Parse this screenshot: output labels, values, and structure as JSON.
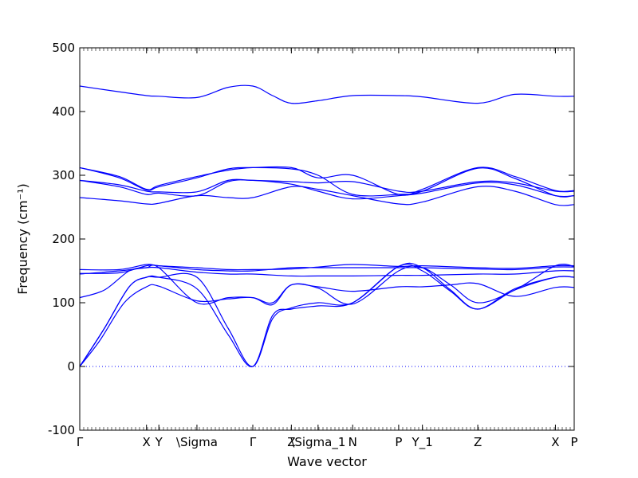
{
  "chart_data": {
    "type": "line",
    "xlabel": "Wave vector",
    "ylabel": "Frequency (cm⁻¹)",
    "ylim": [
      -100,
      500
    ],
    "yticks": [
      -100,
      0,
      100,
      200,
      300,
      400,
      500
    ],
    "xlim": [
      0,
      1
    ],
    "xticks": [
      {
        "x": 0.0,
        "label": "Γ"
      },
      {
        "x": 0.135,
        "label": "X"
      },
      {
        "x": 0.16,
        "label": "Y"
      },
      {
        "x": 0.237,
        "label": "\\Sigma"
      },
      {
        "x": 0.35,
        "label": "Γ"
      },
      {
        "x": 0.428,
        "label": "Z"
      },
      {
        "x": 0.482,
        "label": "\\Sigma_1"
      },
      {
        "x": 0.552,
        "label": "N"
      },
      {
        "x": 0.645,
        "label": "P"
      },
      {
        "x": 0.693,
        "label": "Y_1"
      },
      {
        "x": 0.805,
        "label": "Z"
      },
      {
        "x": 0.962,
        "label": "X"
      },
      {
        "x": 1.0,
        "label": "P"
      }
    ],
    "zero_line": {
      "y": 0,
      "style": "dotted"
    },
    "series": [
      {
        "points": [
          [
            0,
            0
          ],
          [
            0.04,
            40
          ],
          [
            0.09,
            100
          ],
          [
            0.135,
            125
          ],
          [
            0.16,
            126
          ],
          [
            0.237,
            103
          ],
          [
            0.3,
            106
          ],
          [
            0.35,
            108
          ],
          [
            0.39,
            97
          ],
          [
            0.428,
            128
          ],
          [
            0.482,
            123
          ],
          [
            0.552,
            98
          ],
          [
            0.645,
            150
          ],
          [
            0.693,
            155
          ],
          [
            0.75,
            128
          ],
          [
            0.805,
            100
          ],
          [
            0.88,
            120
          ],
          [
            0.962,
            158
          ],
          [
            1,
            157
          ]
        ]
      },
      {
        "points": [
          [
            0,
            0
          ],
          [
            0.05,
            60
          ],
          [
            0.1,
            125
          ],
          [
            0.135,
            140
          ],
          [
            0.16,
            140
          ],
          [
            0.237,
            140
          ],
          [
            0.3,
            60
          ],
          [
            0.35,
            0
          ],
          [
            0.39,
            75
          ],
          [
            0.428,
            92
          ],
          [
            0.482,
            100
          ],
          [
            0.552,
            100
          ],
          [
            0.645,
            157
          ],
          [
            0.693,
            155
          ],
          [
            0.75,
            120
          ],
          [
            0.805,
            90
          ],
          [
            0.88,
            120
          ],
          [
            0.962,
            140
          ],
          [
            1,
            140
          ]
        ]
      },
      {
        "points": [
          [
            0,
            0
          ],
          [
            0.05,
            60
          ],
          [
            0.1,
            125
          ],
          [
            0.135,
            140
          ],
          [
            0.16,
            140
          ],
          [
            0.237,
            122
          ],
          [
            0.3,
            50
          ],
          [
            0.35,
            0
          ],
          [
            0.39,
            80
          ],
          [
            0.428,
            90
          ],
          [
            0.482,
            95
          ],
          [
            0.552,
            100
          ],
          [
            0.645,
            157
          ],
          [
            0.693,
            150
          ],
          [
            0.75,
            118
          ],
          [
            0.805,
            90
          ],
          [
            0.88,
            122
          ],
          [
            0.962,
            140
          ],
          [
            1,
            140
          ]
        ]
      },
      {
        "points": [
          [
            0,
            108
          ],
          [
            0.05,
            120
          ],
          [
            0.1,
            150
          ],
          [
            0.135,
            155
          ],
          [
            0.16,
            155
          ],
          [
            0.237,
            100
          ],
          [
            0.3,
            108
          ],
          [
            0.35,
            108
          ],
          [
            0.39,
            100
          ],
          [
            0.428,
            128
          ],
          [
            0.482,
            125
          ],
          [
            0.552,
            118
          ],
          [
            0.645,
            125
          ],
          [
            0.693,
            125
          ],
          [
            0.75,
            128
          ],
          [
            0.805,
            130
          ],
          [
            0.88,
            110
          ],
          [
            0.962,
            124
          ],
          [
            1,
            124
          ]
        ]
      },
      {
        "points": [
          [
            0,
            145
          ],
          [
            0.08,
            150
          ],
          [
            0.135,
            155
          ],
          [
            0.16,
            155
          ],
          [
            0.237,
            148
          ],
          [
            0.3,
            145
          ],
          [
            0.35,
            145
          ],
          [
            0.428,
            142
          ],
          [
            0.482,
            142
          ],
          [
            0.552,
            142
          ],
          [
            0.645,
            143
          ],
          [
            0.693,
            143
          ],
          [
            0.805,
            145
          ],
          [
            0.88,
            145
          ],
          [
            0.962,
            150
          ],
          [
            1,
            150
          ]
        ]
      },
      {
        "points": [
          [
            0,
            146
          ],
          [
            0.08,
            147
          ],
          [
            0.135,
            158
          ],
          [
            0.16,
            158
          ],
          [
            0.237,
            152
          ],
          [
            0.3,
            150
          ],
          [
            0.35,
            150
          ],
          [
            0.428,
            155
          ],
          [
            0.482,
            155
          ],
          [
            0.552,
            155
          ],
          [
            0.645,
            155
          ],
          [
            0.693,
            155
          ],
          [
            0.805,
            153
          ],
          [
            0.88,
            152
          ],
          [
            0.962,
            156
          ],
          [
            1,
            156
          ]
        ]
      },
      {
        "points": [
          [
            0,
            152
          ],
          [
            0.08,
            152
          ],
          [
            0.135,
            160
          ],
          [
            0.16,
            158
          ],
          [
            0.237,
            155
          ],
          [
            0.3,
            152
          ],
          [
            0.35,
            152
          ],
          [
            0.428,
            153
          ],
          [
            0.482,
            156
          ],
          [
            0.552,
            160
          ],
          [
            0.645,
            157
          ],
          [
            0.693,
            158
          ],
          [
            0.805,
            155
          ],
          [
            0.88,
            154
          ],
          [
            0.962,
            158
          ],
          [
            1,
            158
          ]
        ]
      },
      {
        "points": [
          [
            0,
            265
          ],
          [
            0.08,
            260
          ],
          [
            0.135,
            255
          ],
          [
            0.16,
            256
          ],
          [
            0.237,
            268
          ],
          [
            0.3,
            265
          ],
          [
            0.35,
            265
          ],
          [
            0.428,
            282
          ],
          [
            0.482,
            278
          ],
          [
            0.552,
            268
          ],
          [
            0.645,
            255
          ],
          [
            0.693,
            258
          ],
          [
            0.805,
            282
          ],
          [
            0.88,
            275
          ],
          [
            0.962,
            254
          ],
          [
            1,
            254
          ]
        ]
      },
      {
        "points": [
          [
            0,
            292
          ],
          [
            0.08,
            282
          ],
          [
            0.135,
            270
          ],
          [
            0.16,
            272
          ],
          [
            0.237,
            268
          ],
          [
            0.3,
            290
          ],
          [
            0.35,
            292
          ],
          [
            0.428,
            286
          ],
          [
            0.482,
            275
          ],
          [
            0.552,
            263
          ],
          [
            0.645,
            268
          ],
          [
            0.693,
            272
          ],
          [
            0.805,
            288
          ],
          [
            0.88,
            285
          ],
          [
            0.962,
            268
          ],
          [
            1,
            268
          ]
        ]
      },
      {
        "points": [
          [
            0,
            292
          ],
          [
            0.08,
            285
          ],
          [
            0.135,
            275
          ],
          [
            0.16,
            274
          ],
          [
            0.237,
            274
          ],
          [
            0.3,
            292
          ],
          [
            0.35,
            292
          ],
          [
            0.428,
            290
          ],
          [
            0.482,
            288
          ],
          [
            0.552,
            290
          ],
          [
            0.645,
            275
          ],
          [
            0.693,
            275
          ],
          [
            0.805,
            290
          ],
          [
            0.88,
            288
          ],
          [
            0.962,
            275
          ],
          [
            1,
            275
          ]
        ]
      },
      {
        "points": [
          [
            0,
            312
          ],
          [
            0.08,
            296
          ],
          [
            0.135,
            277
          ],
          [
            0.16,
            282
          ],
          [
            0.237,
            296
          ],
          [
            0.3,
            310
          ],
          [
            0.35,
            312
          ],
          [
            0.428,
            310
          ],
          [
            0.482,
            300
          ],
          [
            0.552,
            270
          ],
          [
            0.645,
            270
          ],
          [
            0.693,
            275
          ],
          [
            0.805,
            311
          ],
          [
            0.88,
            295
          ],
          [
            0.962,
            268
          ],
          [
            1,
            268
          ]
        ]
      },
      {
        "points": [
          [
            0,
            312
          ],
          [
            0.08,
            298
          ],
          [
            0.135,
            278
          ],
          [
            0.16,
            284
          ],
          [
            0.237,
            298
          ],
          [
            0.3,
            308
          ],
          [
            0.35,
            312
          ],
          [
            0.428,
            312
          ],
          [
            0.482,
            296
          ],
          [
            0.552,
            300
          ],
          [
            0.645,
            270
          ],
          [
            0.693,
            278
          ],
          [
            0.805,
            312
          ],
          [
            0.88,
            298
          ],
          [
            0.962,
            276
          ],
          [
            1,
            276
          ]
        ]
      },
      {
        "points": [
          [
            0,
            440
          ],
          [
            0.07,
            432
          ],
          [
            0.135,
            425
          ],
          [
            0.16,
            424
          ],
          [
            0.237,
            422
          ],
          [
            0.3,
            438
          ],
          [
            0.35,
            440
          ],
          [
            0.39,
            425
          ],
          [
            0.428,
            413
          ],
          [
            0.482,
            417
          ],
          [
            0.552,
            425
          ],
          [
            0.645,
            425
          ],
          [
            0.693,
            423
          ],
          [
            0.805,
            413
          ],
          [
            0.88,
            427
          ],
          [
            0.962,
            424
          ],
          [
            1,
            424
          ]
        ]
      }
    ]
  }
}
